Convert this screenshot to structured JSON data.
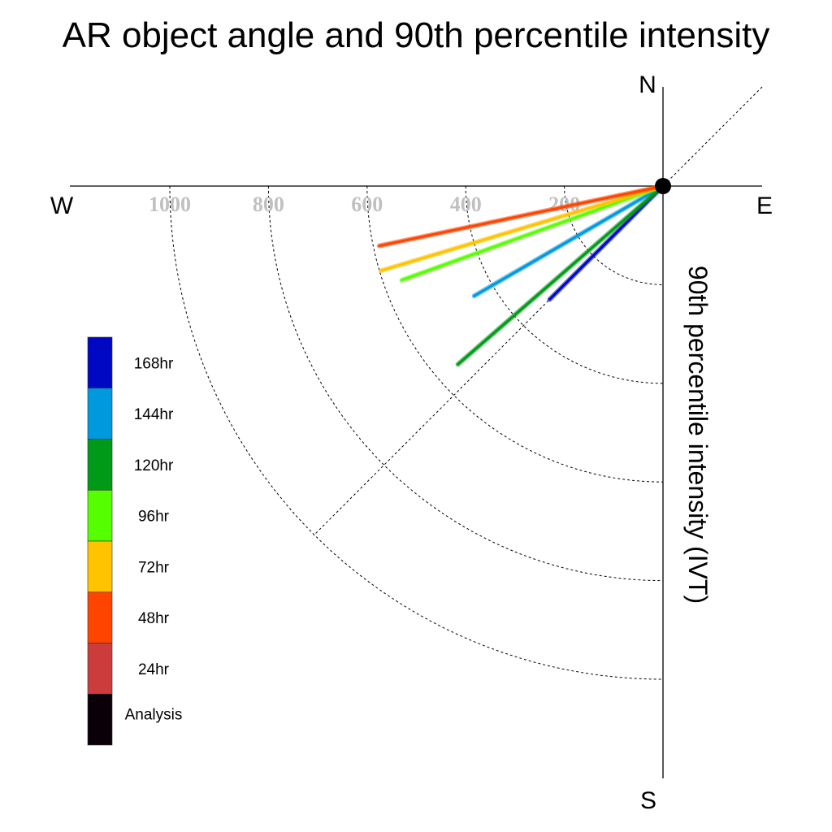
{
  "chart_data": {
    "type": "polar-quadrant",
    "title": "AR object angle and 90th percentile intensity",
    "ylabel": "90th percentile intensity (IVT)",
    "compass": {
      "north": "N",
      "south": "S",
      "east": "E",
      "west": "W"
    },
    "radial_ticks": [
      "200",
      "400",
      "600",
      "800",
      "1000"
    ],
    "radial_values": [
      200,
      400,
      600,
      800,
      1000
    ],
    "series": [
      {
        "name": "168hr",
        "color": "#0008c4",
        "angle_deg": 45.0,
        "intensity": 325
      },
      {
        "name": "144hr",
        "color": "#0099dd",
        "angle_deg": 30.2,
        "intensity": 443
      },
      {
        "name": "120hr",
        "color": "#009a18",
        "angle_deg": 41.0,
        "intensity": 551
      },
      {
        "name": "96hr",
        "color": "#55ff00",
        "angle_deg": 19.8,
        "intensity": 563
      },
      {
        "name": "72hr",
        "color": "#ffc300",
        "angle_deg": 16.7,
        "intensity": 597
      },
      {
        "name": "48hr",
        "color": "#ff4400",
        "angle_deg": 11.9,
        "intensity": 588
      }
    ],
    "legend": [
      {
        "label": "168hr",
        "color": "#0008c4"
      },
      {
        "label": "144hr",
        "color": "#0099dd"
      },
      {
        "label": "120hr",
        "color": "#009a18"
      },
      {
        "label": "96hr",
        "color": "#55ff00"
      },
      {
        "label": "72hr",
        "color": "#ffc300"
      },
      {
        "label": "48hr",
        "color": "#ff4400"
      },
      {
        "label": "24hr",
        "color": "#cc3c3c"
      },
      {
        "label": "Analysis",
        "color": "#0a0008"
      }
    ]
  }
}
